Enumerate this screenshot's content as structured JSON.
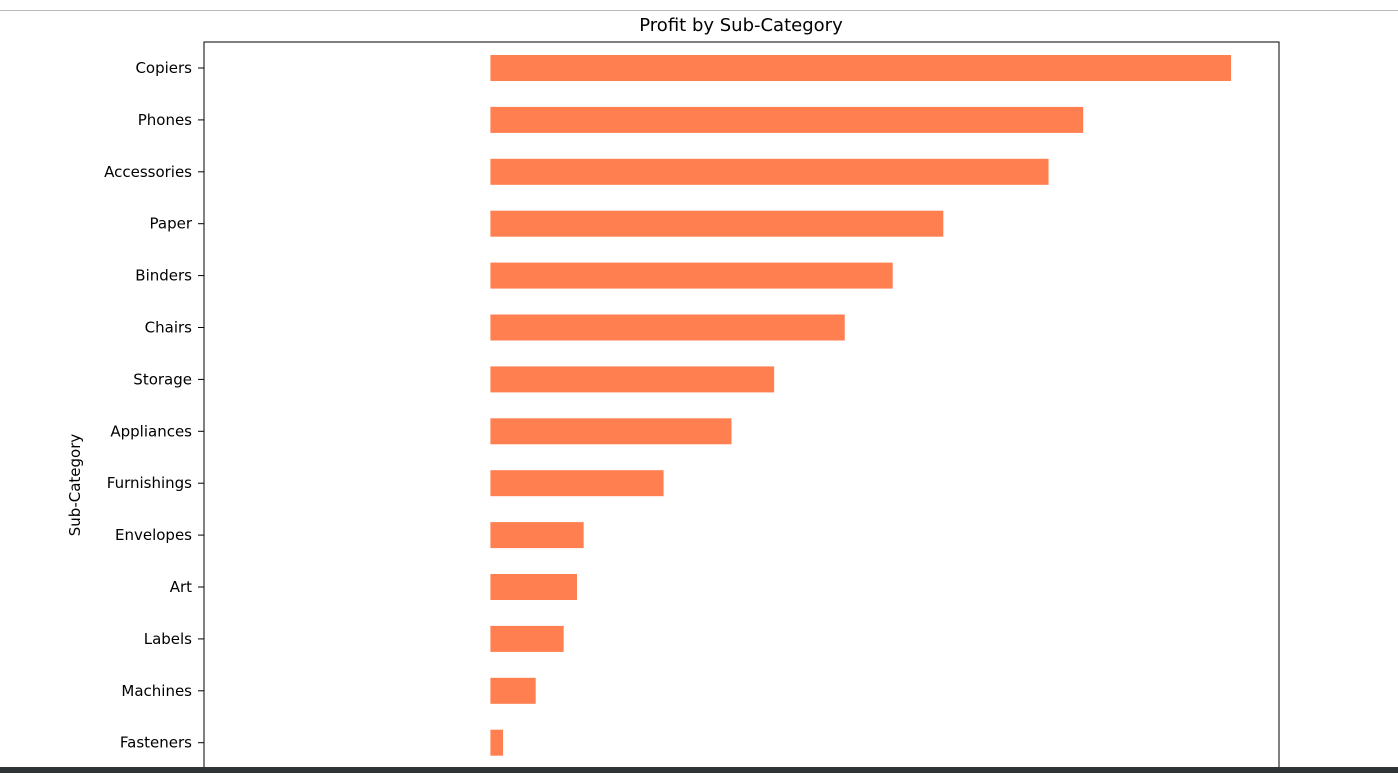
{
  "chart_data": {
    "type": "bar",
    "orientation": "horizontal",
    "title": "Profit by Sub-Category",
    "xlabel": "",
    "ylabel": "Sub-Category",
    "categories": [
      "Copiers",
      "Phones",
      "Accessories",
      "Paper",
      "Binders",
      "Chairs",
      "Storage",
      "Appliances",
      "Furnishings",
      "Envelopes",
      "Art",
      "Labels",
      "Machines",
      "Fasteners"
    ],
    "values": [
      55600,
      44500,
      41900,
      34000,
      30200,
      26600,
      21300,
      18100,
      13000,
      7000,
      6500,
      5500,
      3400,
      950
    ],
    "xlim": [
      -21500,
      59200
    ],
    "bar_color": "#ff7f50",
    "grid": false,
    "legend": "none"
  }
}
